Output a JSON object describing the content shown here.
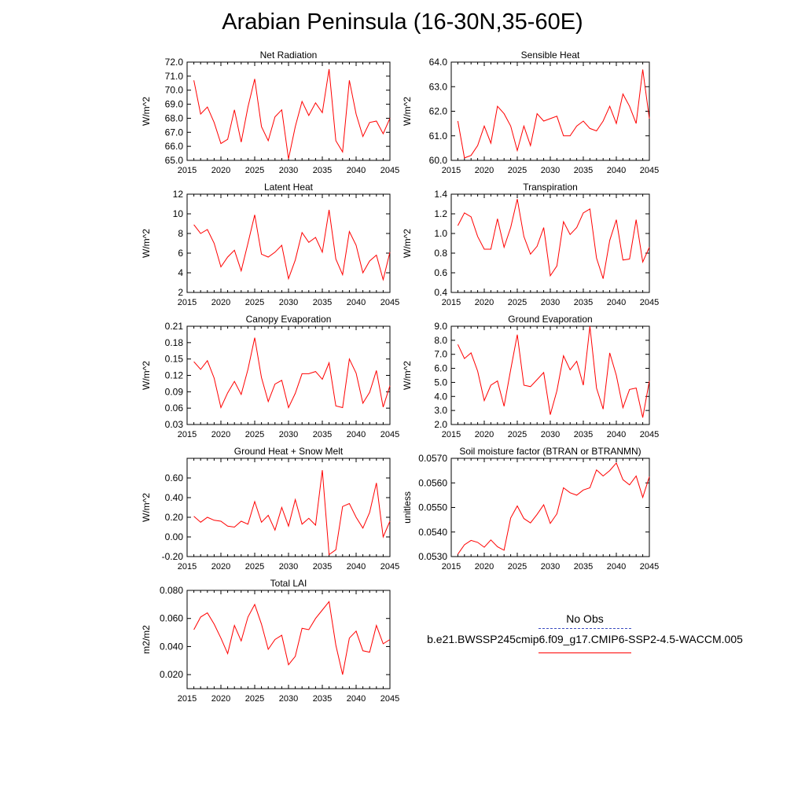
{
  "figure_title": "Arabian Peninsula (16-30N,35-60E)",
  "legend": {
    "obs_label": "No Obs",
    "obs_color": "#3b4cc0",
    "case_label": "b.e21.BWSSP245cmip6.f09_g17.CMIP6-SSP2-4.5-WACCM.005",
    "case_color": "#ff0000"
  },
  "chart_data": [
    {
      "type": "line",
      "title": "Net Radiation",
      "ylabel": "W/m^2",
      "xlim": [
        2015,
        2045
      ],
      "ylim": [
        65.0,
        72.0
      ],
      "xticks": [
        "2015",
        "2020",
        "2025",
        "2030",
        "2035",
        "2040",
        "2045"
      ],
      "yticks": [
        "65.0",
        "66.0",
        "67.0",
        "68.0",
        "69.0",
        "70.0",
        "71.0",
        "72.0"
      ],
      "x": [
        2016,
        2017,
        2018,
        2019,
        2020,
        2021,
        2022,
        2023,
        2024,
        2025,
        2026,
        2027,
        2028,
        2029,
        2030,
        2031,
        2032,
        2033,
        2034,
        2035,
        2036,
        2037,
        2038,
        2039,
        2040,
        2041,
        2042,
        2043,
        2044,
        2045
      ],
      "series": [
        {
          "values": [
            70.7,
            68.3,
            68.8,
            67.7,
            66.2,
            66.5,
            68.6,
            66.3,
            68.8,
            70.8,
            67.4,
            66.4,
            68.1,
            68.6,
            65.1,
            67.4,
            69.2,
            68.2,
            69.1,
            68.4,
            71.5,
            66.4,
            65.6,
            70.7,
            68.3,
            66.7,
            67.7,
            67.8,
            66.9,
            68.0
          ],
          "color": "#ff0000"
        }
      ]
    },
    {
      "type": "line",
      "title": "Sensible Heat",
      "ylabel": "W/m^2",
      "xlim": [
        2015,
        2045
      ],
      "ylim": [
        60.0,
        64.0
      ],
      "xticks": [
        "2015",
        "2020",
        "2025",
        "2030",
        "2035",
        "2040",
        "2045"
      ],
      "yticks": [
        "60.0",
        "61.0",
        "62.0",
        "63.0",
        "64.0"
      ],
      "x": [
        2016,
        2017,
        2018,
        2019,
        2020,
        2021,
        2022,
        2023,
        2024,
        2025,
        2026,
        2027,
        2028,
        2029,
        2030,
        2031,
        2032,
        2033,
        2034,
        2035,
        2036,
        2037,
        2038,
        2039,
        2040,
        2041,
        2042,
        2043,
        2044,
        2045
      ],
      "series": [
        {
          "values": [
            61.6,
            60.1,
            60.2,
            60.6,
            61.4,
            60.7,
            62.2,
            61.9,
            61.4,
            60.4,
            61.4,
            60.6,
            61.9,
            61.6,
            61.7,
            61.8,
            61.0,
            61.0,
            61.4,
            61.6,
            61.3,
            61.2,
            61.6,
            62.2,
            61.5,
            62.7,
            62.2,
            61.5,
            63.7,
            61.7
          ],
          "color": "#ff0000"
        }
      ]
    },
    {
      "type": "line",
      "title": "Latent Heat",
      "ylabel": "W/m^2",
      "xlim": [
        2015,
        2045
      ],
      "ylim": [
        2,
        12
      ],
      "xticks": [
        "2015",
        "2020",
        "2025",
        "2030",
        "2035",
        "2040",
        "2045"
      ],
      "yticks": [
        "2",
        "4",
        "6",
        "8",
        "10",
        "12"
      ],
      "x": [
        2016,
        2017,
        2018,
        2019,
        2020,
        2021,
        2022,
        2023,
        2024,
        2025,
        2026,
        2027,
        2028,
        2029,
        2030,
        2031,
        2032,
        2033,
        2034,
        2035,
        2036,
        2037,
        2038,
        2039,
        2040,
        2041,
        2042,
        2043,
        2044,
        2045
      ],
      "series": [
        {
          "values": [
            8.9,
            8.0,
            8.4,
            7.0,
            4.6,
            5.6,
            6.3,
            4.2,
            7.0,
            9.9,
            5.9,
            5.6,
            6.1,
            6.8,
            3.4,
            5.3,
            8.1,
            7.1,
            7.6,
            6.1,
            10.4,
            5.4,
            3.8,
            8.2,
            6.8,
            4.0,
            5.2,
            5.8,
            3.3,
            6.1
          ],
          "color": "#ff0000"
        }
      ]
    },
    {
      "type": "line",
      "title": "Transpiration",
      "ylabel": "W/m^2",
      "xlim": [
        2015,
        2045
      ],
      "ylim": [
        0.4,
        1.4
      ],
      "xticks": [
        "2015",
        "2020",
        "2025",
        "2030",
        "2035",
        "2040",
        "2045"
      ],
      "yticks": [
        "0.4",
        "0.6",
        "0.8",
        "1.0",
        "1.2",
        "1.4"
      ],
      "x": [
        2016,
        2017,
        2018,
        2019,
        2020,
        2021,
        2022,
        2023,
        2024,
        2025,
        2026,
        2027,
        2028,
        2029,
        2030,
        2031,
        2032,
        2033,
        2034,
        2035,
        2036,
        2037,
        2038,
        2039,
        2040,
        2041,
        2042,
        2043,
        2044,
        2045
      ],
      "series": [
        {
          "values": [
            1.08,
            1.21,
            1.17,
            0.97,
            0.84,
            0.84,
            1.15,
            0.86,
            1.06,
            1.35,
            0.97,
            0.79,
            0.87,
            1.06,
            0.57,
            0.67,
            1.12,
            0.99,
            1.06,
            1.21,
            1.25,
            0.75,
            0.54,
            0.93,
            1.14,
            0.73,
            0.74,
            1.14,
            0.71,
            0.86
          ],
          "color": "#ff0000"
        }
      ]
    },
    {
      "type": "line",
      "title": "Canopy Evaporation",
      "ylabel": "W/m^2",
      "xlim": [
        2015,
        2045
      ],
      "ylim": [
        0.03,
        0.21
      ],
      "xticks": [
        "2015",
        "2020",
        "2025",
        "2030",
        "2035",
        "2040",
        "2045"
      ],
      "yticks": [
        "0.03",
        "0.06",
        "0.09",
        "0.12",
        "0.15",
        "0.18",
        "0.21"
      ],
      "x": [
        2016,
        2017,
        2018,
        2019,
        2020,
        2021,
        2022,
        2023,
        2024,
        2025,
        2026,
        2027,
        2028,
        2029,
        2030,
        2031,
        2032,
        2033,
        2034,
        2035,
        2036,
        2037,
        2038,
        2039,
        2040,
        2041,
        2042,
        2043,
        2044,
        2045
      ],
      "series": [
        {
          "values": [
            0.145,
            0.131,
            0.147,
            0.115,
            0.061,
            0.088,
            0.109,
            0.085,
            0.131,
            0.189,
            0.116,
            0.072,
            0.104,
            0.111,
            0.061,
            0.087,
            0.123,
            0.123,
            0.127,
            0.113,
            0.143,
            0.064,
            0.061,
            0.15,
            0.124,
            0.069,
            0.089,
            0.129,
            0.062,
            0.101
          ],
          "color": "#ff0000"
        }
      ]
    },
    {
      "type": "line",
      "title": "Ground Evaporation",
      "ylabel": "W/m^2",
      "xlim": [
        2015,
        2045
      ],
      "ylim": [
        2.0,
        9.0
      ],
      "xticks": [
        "2015",
        "2020",
        "2025",
        "2030",
        "2035",
        "2040",
        "2045"
      ],
      "yticks": [
        "2.0",
        "3.0",
        "4.0",
        "5.0",
        "6.0",
        "7.0",
        "8.0",
        "9.0"
      ],
      "x": [
        2016,
        2017,
        2018,
        2019,
        2020,
        2021,
        2022,
        2023,
        2024,
        2025,
        2026,
        2027,
        2028,
        2029,
        2030,
        2031,
        2032,
        2033,
        2034,
        2035,
        2036,
        2037,
        2038,
        2039,
        2040,
        2041,
        2042,
        2043,
        2044,
        2045
      ],
      "series": [
        {
          "values": [
            7.7,
            6.7,
            7.1,
            5.8,
            3.7,
            4.8,
            5.1,
            3.3,
            5.9,
            8.4,
            4.8,
            4.7,
            5.2,
            5.7,
            2.7,
            4.4,
            6.9,
            5.9,
            6.5,
            4.8,
            9.0,
            4.6,
            3.1,
            7.1,
            5.5,
            3.2,
            4.5,
            4.6,
            2.5,
            5.1
          ],
          "color": "#ff0000"
        }
      ]
    },
    {
      "type": "line",
      "title": "Ground Heat + Snow Melt",
      "ylabel": "W/m^2",
      "xlim": [
        2015,
        2045
      ],
      "ylim": [
        -0.2,
        0.8
      ],
      "xticks": [
        "2015",
        "2020",
        "2025",
        "2030",
        "2035",
        "2040",
        "2045"
      ],
      "yticks": [
        "-0.20",
        "0.00",
        "0.20",
        "0.40",
        "0.60"
      ],
      "x": [
        2016,
        2017,
        2018,
        2019,
        2020,
        2021,
        2022,
        2023,
        2024,
        2025,
        2026,
        2027,
        2028,
        2029,
        2030,
        2031,
        2032,
        2033,
        2034,
        2035,
        2036,
        2037,
        2038,
        2039,
        2040,
        2041,
        2042,
        2043,
        2044,
        2045
      ],
      "series": [
        {
          "values": [
            0.21,
            0.15,
            0.2,
            0.17,
            0.16,
            0.11,
            0.1,
            0.16,
            0.13,
            0.36,
            0.15,
            0.22,
            0.07,
            0.3,
            0.11,
            0.38,
            0.13,
            0.19,
            0.12,
            0.68,
            -0.18,
            -0.13,
            0.31,
            0.34,
            0.2,
            0.09,
            0.25,
            0.55,
            0.0,
            0.16
          ],
          "color": "#ff0000"
        }
      ]
    },
    {
      "type": "line",
      "title": "Soil moisture factor (BTRAN or BTRANMN)",
      "ylabel": "unitless",
      "xlim": [
        2015,
        2045
      ],
      "ylim": [
        0.053,
        0.057
      ],
      "xticks": [
        "2015",
        "2020",
        "2025",
        "2030",
        "2035",
        "2040",
        "2045"
      ],
      "yticks": [
        "0.0530",
        "0.0540",
        "0.0550",
        "0.0560",
        "0.0570"
      ],
      "x": [
        2016,
        2017,
        2018,
        2019,
        2020,
        2021,
        2022,
        2023,
        2024,
        2025,
        2026,
        2027,
        2028,
        2029,
        2030,
        2031,
        2032,
        2033,
        2034,
        2035,
        2036,
        2037,
        2038,
        2039,
        2040,
        2041,
        2042,
        2043,
        2044,
        2045
      ],
      "series": [
        {
          "values": [
            0.0531,
            0.05348,
            0.05366,
            0.05358,
            0.05338,
            0.05368,
            0.0534,
            0.05326,
            0.05457,
            0.05506,
            0.05455,
            0.05437,
            0.05472,
            0.05511,
            0.05435,
            0.05474,
            0.0558,
            0.0556,
            0.0555,
            0.05571,
            0.0558,
            0.05653,
            0.05628,
            0.0565,
            0.05681,
            0.05613,
            0.05592,
            0.05628,
            0.05541,
            0.05625
          ],
          "color": "#ff0000"
        }
      ]
    },
    {
      "type": "line",
      "title": "Total LAI",
      "ylabel": "m2/m2",
      "xlim": [
        2015,
        2045
      ],
      "ylim": [
        0.01,
        0.08
      ],
      "xticks": [
        "2015",
        "2020",
        "2025",
        "2030",
        "2035",
        "2040",
        "2045"
      ],
      "yticks": [
        "0.020",
        "0.040",
        "0.060",
        "0.080"
      ],
      "x": [
        2016,
        2017,
        2018,
        2019,
        2020,
        2021,
        2022,
        2023,
        2024,
        2025,
        2026,
        2027,
        2028,
        2029,
        2030,
        2031,
        2032,
        2033,
        2034,
        2035,
        2036,
        2037,
        2038,
        2039,
        2040,
        2041,
        2042,
        2043,
        2044,
        2045
      ],
      "series": [
        {
          "values": [
            0.052,
            0.061,
            0.064,
            0.056,
            0.046,
            0.035,
            0.055,
            0.044,
            0.061,
            0.07,
            0.056,
            0.038,
            0.045,
            0.048,
            0.027,
            0.033,
            0.053,
            0.052,
            0.06,
            0.066,
            0.072,
            0.041,
            0.02,
            0.046,
            0.051,
            0.037,
            0.036,
            0.055,
            0.042,
            0.045
          ],
          "color": "#ff0000"
        }
      ]
    }
  ]
}
